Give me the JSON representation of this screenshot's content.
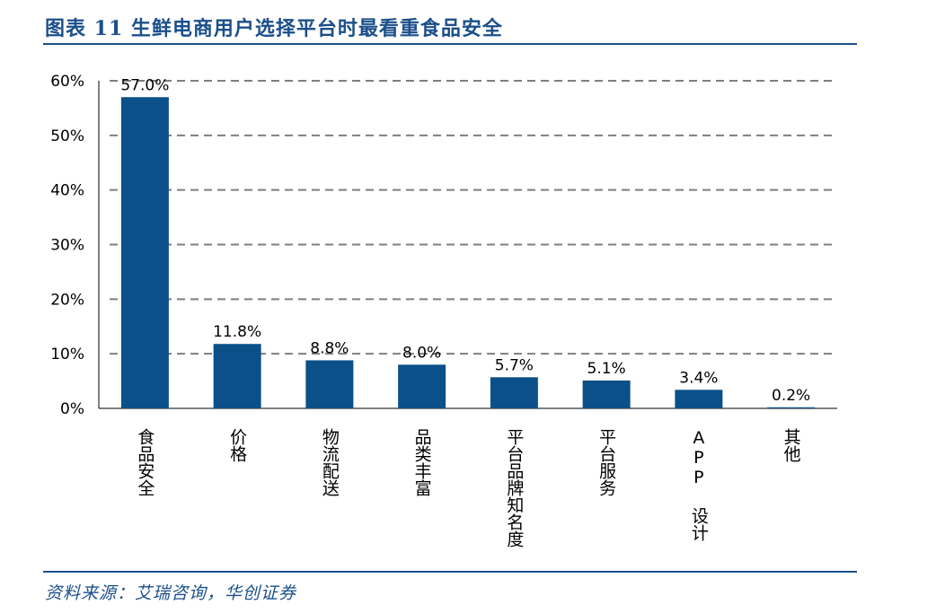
{
  "figure": {
    "title": "图表 11  生鲜电商用户选择平台时最看重食品安全",
    "source": "资料来源：艾瑞咨询，华创证券"
  },
  "colors": {
    "bar": "#0b5089",
    "accent": "#1b4f8a",
    "grid": "#7f7f7f"
  },
  "chart_data": {
    "type": "bar",
    "title": "",
    "xlabel": "",
    "ylabel": "",
    "categories": [
      "食品安全",
      "价格",
      "物流配送",
      "品类丰富",
      "平台品牌知名度",
      "平台服务",
      "APP 设计",
      "其他"
    ],
    "values": [
      57.0,
      11.8,
      8.8,
      8.0,
      5.7,
      5.1,
      3.4,
      0.2
    ],
    "value_labels": [
      "57.0%",
      "11.8%",
      "8.8%",
      "8.0%",
      "5.7%",
      "5.1%",
      "3.4%",
      "0.2%"
    ],
    "ylim": [
      0,
      60
    ],
    "yticks": [
      0,
      10,
      20,
      30,
      40,
      50,
      60
    ],
    "ytick_labels": [
      "0%",
      "10%",
      "20%",
      "30%",
      "40%",
      "50%",
      "60%"
    ],
    "grid": true,
    "grid_style": "dashed",
    "legend": "none"
  }
}
